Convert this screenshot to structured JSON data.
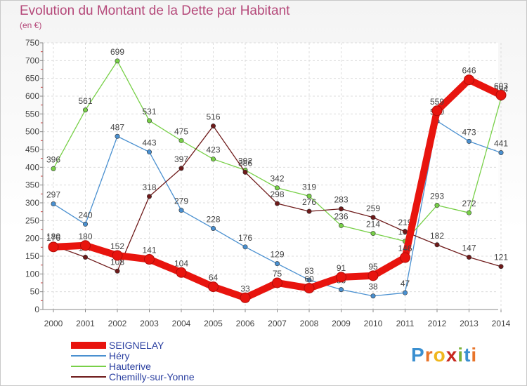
{
  "title": "Evolution du Montant de la Dette par Habitant",
  "subtitle": "(en €)",
  "logo": {
    "text": "Proxiti",
    "letters": [
      {
        "ch": "P",
        "color": "#3a8fd0"
      },
      {
        "ch": "r",
        "color": "#e8742a"
      },
      {
        "ch": "o",
        "color": "#f0b71e"
      },
      {
        "ch": "x",
        "color": "#c8281e"
      },
      {
        "ch": "i",
        "color": "#7bb23a"
      },
      {
        "ch": "t",
        "color": "#3a8fd0"
      },
      {
        "ch": "i",
        "color": "#e8742a"
      }
    ]
  },
  "chart_data": {
    "type": "line",
    "x": [
      2000,
      2001,
      2002,
      2003,
      2004,
      2005,
      2006,
      2007,
      2008,
      2009,
      2010,
      2011,
      2012,
      2013,
      2014
    ],
    "ylim": [
      0,
      750
    ],
    "yticks": [
      0,
      50,
      100,
      150,
      200,
      250,
      300,
      350,
      400,
      450,
      500,
      550,
      600,
      650,
      700,
      750
    ],
    "grid": true,
    "legend_position": "bottom-left",
    "series": [
      {
        "name": "SEIGNELAY",
        "color": "#e8140e",
        "thick": true,
        "values": [
          176,
          180,
          152,
          141,
          104,
          64,
          33,
          75,
          60,
          91,
          95,
          146,
          559,
          646,
          603
        ]
      },
      {
        "name": "Héry",
        "color": "#4a90d0",
        "thick": false,
        "values": [
          297,
          240,
          487,
          443,
          279,
          228,
          176,
          129,
          83,
          56,
          38,
          47,
          530,
          473,
          441
        ]
      },
      {
        "name": "Hauterive",
        "color": "#78d048",
        "thick": false,
        "values": [
          396,
          561,
          699,
          531,
          475,
          423,
          392,
          342,
          319,
          236,
          214,
          192,
          293,
          272,
          594
        ]
      },
      {
        "name": "Chemilly-sur-Yonne",
        "color": "#6e1a1a",
        "thick": false,
        "values": [
          180,
          147,
          108,
          318,
          397,
          516,
          386,
          298,
          276,
          283,
          259,
          219,
          182,
          147,
          121
        ]
      }
    ]
  }
}
